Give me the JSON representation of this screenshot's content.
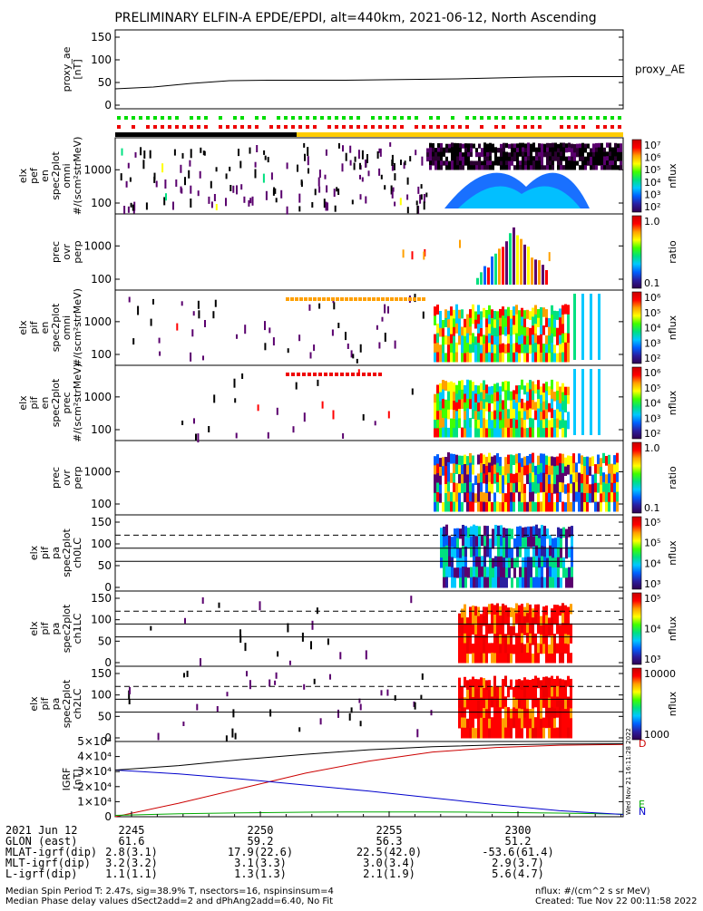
{
  "title": "PRELIMINARY ELFIN-A EPDE/EPDI, alt=440km, 2021-06-12, North Ascending",
  "panels": [
    {
      "id": "proxy_ae",
      "ylabel_lines": [
        "proxy_ae",
        "[nT]"
      ],
      "yticks": [
        "0",
        "50",
        "100",
        "150"
      ],
      "right_label": "proxy_AE"
    },
    {
      "id": "elx_pef_en_spec2plot_omni",
      "ylabel_lines": [
        "elx",
        "pef",
        "en",
        "spec2plot",
        "omni",
        "#/(scm²strMeV)"
      ],
      "yticks": [
        "100",
        "1000"
      ],
      "colorbar": {
        "labels": [
          "10²",
          "10³",
          "10⁴",
          "10⁵",
          "10⁶",
          "10⁷"
        ],
        "title": "nflux"
      }
    },
    {
      "id": "prec_ovr_perp_1",
      "ylabel_lines": [
        "prec",
        "ovr",
        "perp"
      ],
      "yticks": [
        "100",
        "1000"
      ],
      "colorbar": {
        "labels": [
          "0.1",
          "1.0"
        ],
        "title": "ratio"
      }
    },
    {
      "id": "elx_pif_en_spec2plot_omni",
      "ylabel_lines": [
        "elx",
        "pif",
        "en",
        "spec2plot",
        "omni",
        "#/(scm²strMeV)"
      ],
      "yticks": [
        "100",
        "1000"
      ],
      "colorbar": {
        "labels": [
          "10²",
          "10³",
          "10⁴",
          "10⁵",
          "10⁶"
        ],
        "title": "nflux"
      }
    },
    {
      "id": "elx_pif_en_spec2plot_prec",
      "ylabel_lines": [
        "elx",
        "pif",
        "en",
        "spec2plot",
        "prec",
        "#/(scm²strMeV)"
      ],
      "yticks": [
        "100",
        "1000"
      ],
      "colorbar": {
        "labels": [
          "10²",
          "10³",
          "10⁴",
          "10⁵",
          "10⁶"
        ],
        "title": "nflux"
      }
    },
    {
      "id": "prec_ovr_perp_2",
      "ylabel_lines": [
        "prec",
        "ovr",
        "perp"
      ],
      "yticks": [
        "100",
        "1000"
      ],
      "colorbar": {
        "labels": [
          "0.1",
          "1.0"
        ],
        "title": "ratio"
      }
    },
    {
      "id": "elx_pif_pa_spec2plot_ch0LC",
      "ylabel_lines": [
        "elx",
        "pif",
        "pa",
        "spec2plot",
        "ch0LC"
      ],
      "yticks": [
        "0",
        "50",
        "100",
        "150"
      ],
      "colorbar": {
        "labels": [
          "10³",
          "10⁴",
          "10⁵",
          "10⁵"
        ],
        "title": "nflux"
      }
    },
    {
      "id": "elx_pif_pa_spec2plot_ch1LC",
      "ylabel_lines": [
        "elx",
        "pif",
        "pa",
        "spec2plot",
        "ch1LC"
      ],
      "yticks": [
        "0",
        "50",
        "100",
        "150"
      ],
      "colorbar": {
        "labels": [
          "10³",
          "10⁴",
          "10⁵"
        ],
        "title": "nflux"
      }
    },
    {
      "id": "elx_pif_pa_spec2plot_ch2LC",
      "ylabel_lines": [
        "elx",
        "pif",
        "pa",
        "spec2plot",
        "ch2LC"
      ],
      "yticks": [
        "0",
        "50",
        "100",
        "150"
      ],
      "colorbar": {
        "labels": [
          "1000",
          "10000"
        ],
        "title": "nflux"
      }
    },
    {
      "id": "igrf",
      "ylabel_lines": [
        "IGRF",
        "[nT]"
      ],
      "yticks": [
        "0",
        "1×10⁴",
        "2×10⁴",
        "3×10⁴",
        "4×10⁴",
        "5×10⁴"
      ],
      "right_labels": [
        {
          "text": "D",
          "color": "#cc0000"
        },
        {
          "text": "E",
          "color": "#00aa00"
        },
        {
          "text": "N",
          "color": "#0000cc"
        }
      ],
      "side_stamp": "Wed Nov 21 16:11:28 2022"
    }
  ],
  "chart_data": {
    "type": "line",
    "xaxis_ticks": [
      "2245",
      "2250",
      "2255",
      "2300"
    ],
    "ephemeris": {
      "labels": [
        "2021 Jun 12",
        "GLON (east)",
        "MLAT-igrf(dip)",
        "MLT-igrf(dip)",
        "L-igrf(dip)"
      ],
      "columns": [
        [
          "2245",
          "61.6",
          "2.8(3.1)",
          "3.2(3.2)",
          "1.1(1.1)"
        ],
        [
          "2250",
          "59.2",
          "17.9(22.6)",
          "3.1(3.3)",
          "1.3(1.3)"
        ],
        [
          "2255",
          "56.3",
          "22.5(42.0)",
          "3.0(3.4)",
          "2.1(1.9)"
        ],
        [
          "2300",
          "51.2",
          "-53.6(61.4)",
          "2.9(3.7)",
          "5.6(4.7)"
        ]
      ]
    },
    "proxy_ae": {
      "x_minutes": [
        0,
        3,
        6,
        9,
        12,
        15,
        18,
        21,
        24,
        27,
        30,
        33,
        36,
        39,
        40
      ],
      "values_nT": [
        36,
        40,
        48,
        54,
        55,
        55,
        55,
        56,
        57,
        58,
        60,
        62,
        63,
        63,
        63
      ],
      "ylim": [
        0,
        150
      ]
    },
    "igrf": {
      "ylim": [
        0,
        50000
      ],
      "series": [
        {
          "name": "D",
          "color": "#cc0000",
          "x_minutes": [
            0,
            5,
            10,
            15,
            20,
            25,
            30,
            35,
            40
          ],
          "values": [
            0,
            9000,
            19000,
            29000,
            37000,
            43000,
            46000,
            47500,
            48000
          ]
        },
        {
          "name": "E",
          "color": "#00aa00",
          "x_minutes": [
            0,
            5,
            10,
            15,
            20,
            25,
            30,
            35,
            40
          ],
          "values": [
            900,
            1900,
            2600,
            3000,
            3200,
            3200,
            2900,
            2400,
            1700
          ]
        },
        {
          "name": "N",
          "color": "#0000cc",
          "x_minutes": [
            0,
            5,
            10,
            15,
            20,
            25,
            30,
            35,
            40
          ],
          "values": [
            31000,
            28500,
            25000,
            21000,
            17000,
            12500,
            8000,
            4000,
            1500
          ]
        },
        {
          "name": "",
          "color": "#000000",
          "x_minutes": [
            0,
            5,
            10,
            15,
            20,
            25,
            30,
            35,
            40
          ],
          "values": [
            31000,
            34000,
            38000,
            41500,
            44500,
            46500,
            47800,
            48300,
            48500
          ]
        }
      ]
    }
  },
  "footer": {
    "left_line1": "Median Spin Period T: 2.47s, sig=38.9% T, nsectors=16, nspinsinsum=4",
    "left_line2": "Median Phase delay values dSect2add=2 and dPhAng2add=6.40, No Fit",
    "right_line1": "nflux: #/(cm^2 s sr MeV)",
    "right_line2": "Created: Tue Nov 22 00:11:58 2022"
  },
  "colors": {
    "spectrum": [
      "#000000",
      "#5a006e",
      "#2a1ea0",
      "#0060ff",
      "#00c8ff",
      "#00e080",
      "#40ff00",
      "#ffff00",
      "#ffa000",
      "#ff0000"
    ]
  }
}
